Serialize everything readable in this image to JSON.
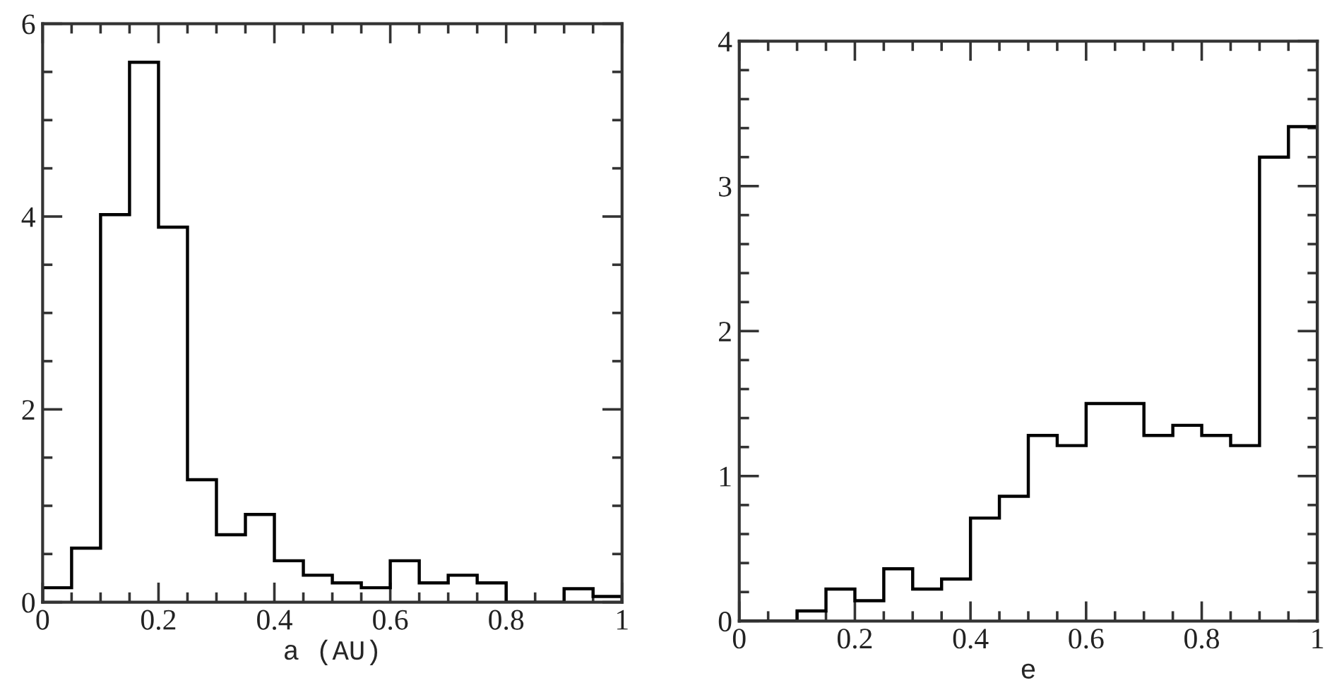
{
  "chart_data": [
    {
      "type": "histogram",
      "xlabel": "a (AU)",
      "bins": [
        0,
        0.05,
        0.1,
        0.15,
        0.2,
        0.25,
        0.3,
        0.35,
        0.4,
        0.45,
        0.5,
        0.55,
        0.6,
        0.65,
        0.7,
        0.75,
        0.8,
        0.85,
        0.9,
        0.95,
        1
      ],
      "values": [
        0.15,
        0.56,
        4.02,
        5.6,
        3.89,
        1.27,
        0.7,
        0.91,
        0.43,
        0.28,
        0.2,
        0.15,
        0.43,
        0.2,
        0.28,
        0.2,
        0,
        0,
        0.14,
        0.06
      ],
      "color": "#000000",
      "xlim": [
        0,
        1
      ],
      "ylim": [
        0,
        6
      ],
      "xticks": [
        0,
        {
          "value": 0.05,
          "label": null
        },
        {
          "value": 0.1,
          "label": null
        },
        {
          "value": 0.15,
          "label": null
        },
        0.2,
        {
          "value": 0.25,
          "label": null
        },
        {
          "value": 0.3,
          "label": null
        },
        {
          "value": 0.35,
          "label": null
        },
        0.4,
        {
          "value": 0.45,
          "label": null
        },
        {
          "value": 0.5,
          "label": null
        },
        {
          "value": 0.55,
          "label": null
        },
        0.6,
        {
          "value": 0.65,
          "label": null
        },
        {
          "value": 0.7,
          "label": null
        },
        {
          "value": 0.75,
          "label": null
        },
        0.8,
        {
          "value": 0.85,
          "label": null
        },
        {
          "value": 0.9,
          "label": null
        },
        {
          "value": 0.95,
          "label": null
        },
        1
      ],
      "yticks": [
        0,
        {
          "value": 0.5,
          "label": null
        },
        {
          "value": 1,
          "label": null
        },
        {
          "value": 1.5,
          "label": null
        },
        2,
        {
          "value": 2.5,
          "label": null
        },
        {
          "value": 3,
          "label": null
        },
        {
          "value": 3.5,
          "label": null
        },
        4,
        {
          "value": 4.5,
          "label": null
        },
        {
          "value": 5,
          "label": null
        },
        {
          "value": 5.5,
          "label": null
        },
        6
      ],
      "grid": false
    },
    {
      "type": "histogram",
      "xlabel": "e",
      "bins": [
        0,
        0.05,
        0.1,
        0.15,
        0.2,
        0.25,
        0.3,
        0.35,
        0.4,
        0.45,
        0.5,
        0.55,
        0.6,
        0.65,
        0.7,
        0.75,
        0.8,
        0.85,
        0.9,
        0.95,
        1
      ],
      "values": [
        0,
        0,
        0.07,
        0.22,
        0.14,
        0.36,
        0.22,
        0.29,
        0.71,
        0.86,
        1.28,
        1.21,
        1.5,
        1.5,
        1.28,
        1.35,
        1.28,
        1.21,
        3.2,
        3.41
      ],
      "color": "#000000",
      "xlim": [
        0,
        1
      ],
      "ylim": [
        0,
        4
      ],
      "xticks": [
        0,
        {
          "value": 0.05,
          "label": null
        },
        {
          "value": 0.1,
          "label": null
        },
        {
          "value": 0.15,
          "label": null
        },
        0.2,
        {
          "value": 0.25,
          "label": null
        },
        {
          "value": 0.3,
          "label": null
        },
        {
          "value": 0.35,
          "label": null
        },
        0.4,
        {
          "value": 0.45,
          "label": null
        },
        {
          "value": 0.5,
          "label": null
        },
        {
          "value": 0.55,
          "label": null
        },
        0.6,
        {
          "value": 0.65,
          "label": null
        },
        {
          "value": 0.7,
          "label": null
        },
        {
          "value": 0.75,
          "label": null
        },
        0.8,
        {
          "value": 0.85,
          "label": null
        },
        {
          "value": 0.9,
          "label": null
        },
        {
          "value": 0.95,
          "label": null
        },
        1
      ],
      "yticks": [
        0,
        {
          "value": 0.2,
          "label": null
        },
        {
          "value": 0.4,
          "label": null
        },
        {
          "value": 0.6,
          "label": null
        },
        {
          "value": 0.8,
          "label": null
        },
        1,
        {
          "value": 1.2,
          "label": null
        },
        {
          "value": 1.4,
          "label": null
        },
        {
          "value": 1.6,
          "label": null
        },
        {
          "value": 1.8,
          "label": null
        },
        2,
        {
          "value": 2.2,
          "label": null
        },
        {
          "value": 2.4,
          "label": null
        },
        {
          "value": 2.6,
          "label": null
        },
        {
          "value": 2.8,
          "label": null
        },
        3,
        {
          "value": 3.2,
          "label": null
        },
        {
          "value": 3.4,
          "label": null
        },
        {
          "value": 3.6,
          "label": null
        },
        {
          "value": 3.8,
          "label": null
        },
        4
      ],
      "grid": false
    }
  ]
}
